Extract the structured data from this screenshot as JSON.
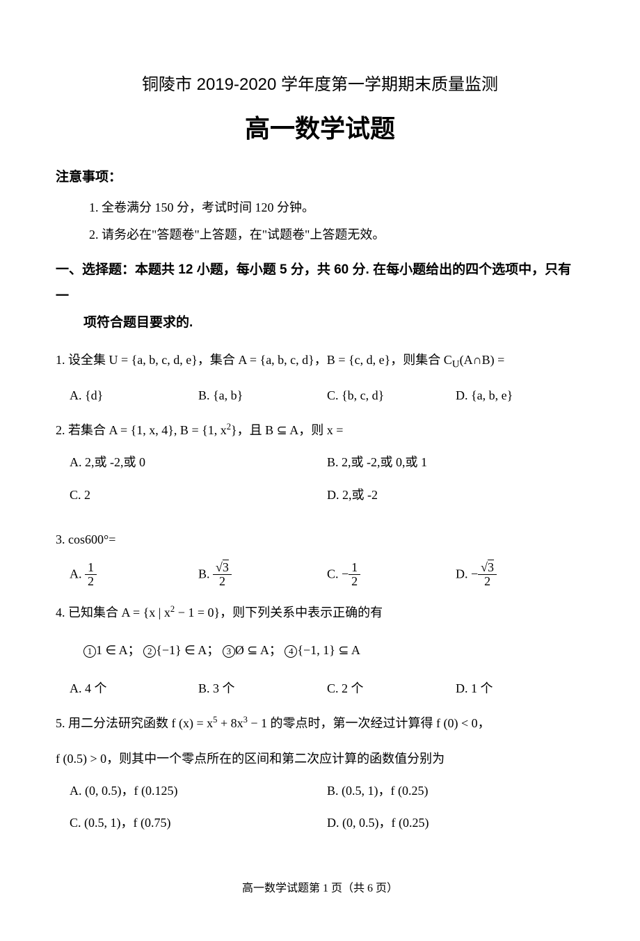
{
  "header": "铜陵市 2019-2020 学年度第一学期期末质量监测",
  "title": "高一数学试题",
  "notice": {
    "heading": "注意事项：",
    "items": [
      "1. 全卷满分 150 分，考试时间 120 分钟。",
      "2. 请务必在\"答题卷\"上答题，在\"试题卷\"上答题无效。"
    ]
  },
  "section1": {
    "heading_line1": "一、选择题：本题共 12 小题，每小题 5 分，共 60 分. 在每小题给出的四个选项中，只有一",
    "heading_line2": "项符合题目要求的."
  },
  "q1": {
    "stem_prefix": "1. 设全集 U = {a, b, c, d, e}，集合 A = {a, b, c, d}，B = {c, d, e}，则集合 C",
    "stem_sub": "U",
    "stem_suffix": "(A∩B) =",
    "optA": "A.  {d}",
    "optB": "B.  {a, b}",
    "optC": "C.  {b, c, d}",
    "optD": "D.  {a, b, e}"
  },
  "q2": {
    "stem_prefix": "2. 若集合 A = {1, x, 4}, B = {1, x",
    "stem_sup": "2",
    "stem_suffix": "}，且 B ⊆ A，则 x =",
    "optA": "A.  2,或 -2,或 0",
    "optB": "B.  2,或 -2,或 0,或 1",
    "optC": "C.  2",
    "optD": "D.  2,或 -2"
  },
  "q3": {
    "stem": "3. cos600°=",
    "optA_label": "A.  ",
    "optA_num": "1",
    "optA_den": "2",
    "optB_label": "B.  ",
    "optB_num_root": "3",
    "optB_den": "2",
    "optC_label": "C.  −",
    "optC_num": "1",
    "optC_den": "2",
    "optD_label": "D.  −",
    "optD_num_root": "3",
    "optD_den": "2"
  },
  "q4": {
    "stem_prefix": "4. 已知集合 A = {x | x",
    "stem_sup": "2",
    "stem_suffix": " − 1 = 0}，则下列关系中表示正确的有",
    "s1": "1 ∈ A；",
    "s2": "{−1} ∈ A；",
    "s3": "Ø ⊆ A；",
    "s4": "{−1, 1} ⊆ A",
    "optA": "A. 4 个",
    "optB": "B. 3 个",
    "optC": "C. 2 个",
    "optD": "D. 1 个"
  },
  "q5": {
    "stem_l1_prefix": "5. 用二分法研究函数 f (x) = x",
    "stem_l1_sup1": "5",
    "stem_l1_mid": " + 8x",
    "stem_l1_sup2": "3",
    "stem_l1_suffix": " − 1 的零点时，第一次经过计算得 f (0) < 0，",
    "stem_l2": "f (0.5) > 0，则其中一个零点所在的区间和第二次应计算的函数值分别为",
    "optA": "A.  (0, 0.5)，f (0.125)",
    "optB": "B.  (0.5, 1)，f (0.25)",
    "optC": "C.  (0.5, 1)，f (0.75)",
    "optD": "D.  (0, 0.5)，f (0.25)"
  },
  "footer": "高一数学试题第 1 页（共 6 页）"
}
